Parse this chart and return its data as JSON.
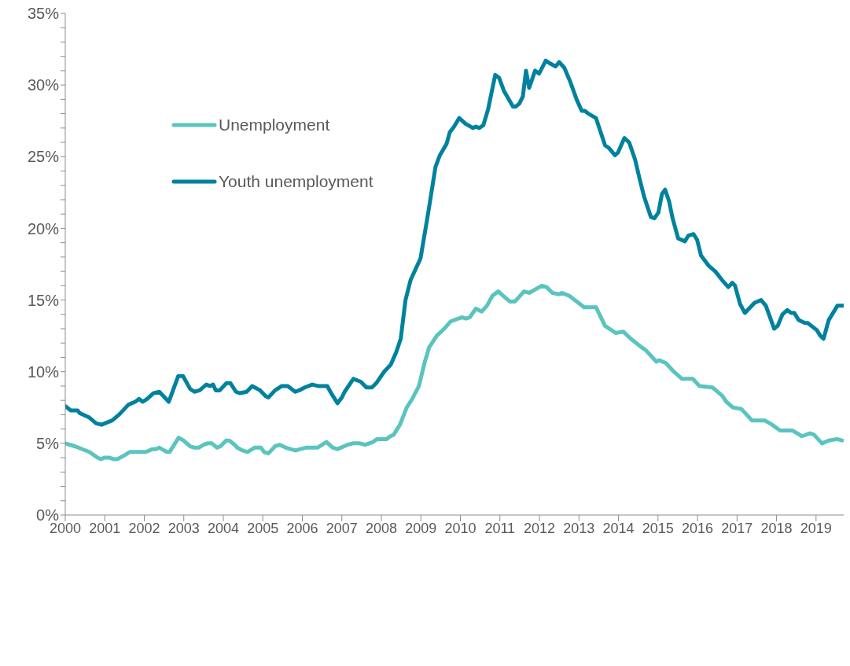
{
  "chart_data": {
    "type": "line",
    "legend": "top left",
    "marker": "none",
    "line_style": "solid",
    "xlim": [
      2000,
      2019.7
    ],
    "xticks": [
      2000,
      2001,
      2002,
      2003,
      2004,
      2005,
      2006,
      2007,
      2008,
      2009,
      2010,
      2011,
      2012,
      2013,
      2014,
      2015,
      2016,
      2017,
      2018,
      2019
    ],
    "ylim": [
      0,
      35
    ],
    "yticks": [
      {
        "value": 0,
        "label": "0%"
      },
      {
        "value": 1,
        "label": null
      },
      {
        "value": 2,
        "label": null
      },
      {
        "value": 3,
        "label": null
      },
      {
        "value": 4,
        "label": null
      },
      {
        "value": 5,
        "label": "5%"
      },
      {
        "value": 6,
        "label": null
      },
      {
        "value": 7,
        "label": null
      },
      {
        "value": 8,
        "label": null
      },
      {
        "value": 9,
        "label": null
      },
      {
        "value": 10,
        "label": "10%"
      },
      {
        "value": 11,
        "label": null
      },
      {
        "value": 12,
        "label": null
      },
      {
        "value": 13,
        "label": null
      },
      {
        "value": 14,
        "label": null
      },
      {
        "value": 15,
        "label": "15%"
      },
      {
        "value": 16,
        "label": null
      },
      {
        "value": 17,
        "label": null
      },
      {
        "value": 18,
        "label": null
      },
      {
        "value": 19,
        "label": null
      },
      {
        "value": 20,
        "label": "20%"
      },
      {
        "value": 21,
        "label": null
      },
      {
        "value": 22,
        "label": null
      },
      {
        "value": 23,
        "label": null
      },
      {
        "value": 24,
        "label": null
      },
      {
        "value": 25,
        "label": "25%"
      },
      {
        "value": 26,
        "label": null
      },
      {
        "value": 27,
        "label": null
      },
      {
        "value": 28,
        "label": null
      },
      {
        "value": 29,
        "label": null
      },
      {
        "value": 30,
        "label": "30%"
      },
      {
        "value": 31,
        "label": null
      },
      {
        "value": 32,
        "label": null
      },
      {
        "value": 33,
        "label": null
      },
      {
        "value": 34,
        "label": null
      },
      {
        "value": 35,
        "label": "35%"
      }
    ],
    "series": [
      {
        "name": "Youth unemployment",
        "color": "#00829e",
        "x": [
          2000.0,
          2000.14,
          2000.31,
          2000.37,
          2000.61,
          2000.78,
          2000.92,
          2001.19,
          2001.36,
          2001.6,
          2001.77,
          2001.87,
          2001.96,
          2002.07,
          2002.23,
          2002.38,
          2002.62,
          2002.86,
          2002.98,
          2003.16,
          2003.27,
          2003.4,
          2003.57,
          2003.66,
          2003.74,
          2003.81,
          2003.91,
          2004.08,
          2004.18,
          2004.32,
          2004.42,
          2004.59,
          2004.73,
          2004.93,
          2005.07,
          2005.14,
          2005.31,
          2005.48,
          2005.63,
          2005.82,
          2005.92,
          2006.06,
          2006.25,
          2006.4,
          2006.63,
          2006.73,
          2006.89,
          2007.0,
          2007.07,
          2007.29,
          2007.48,
          2007.62,
          2007.76,
          2007.87,
          2008.07,
          2008.24,
          2008.38,
          2008.49,
          2008.61,
          2008.74,
          2008.99,
          2009.18,
          2009.37,
          2009.48,
          2009.65,
          2009.73,
          2009.84,
          2009.97,
          2010.13,
          2010.32,
          2010.39,
          2010.48,
          2010.58,
          2010.7,
          2010.88,
          2010.98,
          2011.1,
          2011.33,
          2011.4,
          2011.49,
          2011.58,
          2011.66,
          2011.74,
          2011.89,
          2011.99,
          2012.16,
          2012.27,
          2012.41,
          2012.5,
          2012.63,
          2012.77,
          2012.94,
          2013.07,
          2013.15,
          2013.24,
          2013.43,
          2013.66,
          2013.76,
          2013.91,
          2013.99,
          2014.15,
          2014.27,
          2014.42,
          2014.54,
          2014.65,
          2014.82,
          2014.91,
          2015.01,
          2015.1,
          2015.18,
          2015.28,
          2015.37,
          2015.51,
          2015.68,
          2015.77,
          2015.9,
          2015.99,
          2016.09,
          2016.28,
          2016.45,
          2016.62,
          2016.78,
          2016.88,
          2016.95,
          2017.08,
          2017.2,
          2017.44,
          2017.61,
          2017.73,
          2017.94,
          2018.03,
          2018.15,
          2018.27,
          2018.37,
          2018.45,
          2018.56,
          2018.72,
          2018.79,
          2019.02,
          2019.11,
          2019.19,
          2019.32,
          2019.54,
          2019.7
        ],
        "values": [
          7.6,
          7.3,
          7.3,
          7.1,
          6.8,
          6.4,
          6.3,
          6.6,
          7.0,
          7.7,
          7.9,
          8.1,
          7.9,
          8.1,
          8.5,
          8.6,
          7.9,
          9.7,
          9.7,
          8.8,
          8.6,
          8.7,
          9.1,
          9.0,
          9.1,
          8.7,
          8.7,
          9.2,
          9.2,
          8.6,
          8.5,
          8.6,
          9.0,
          8.7,
          8.3,
          8.2,
          8.7,
          9.0,
          9.0,
          8.6,
          8.7,
          8.9,
          9.1,
          9.0,
          9.0,
          8.5,
          7.8,
          8.2,
          8.6,
          9.5,
          9.3,
          8.9,
          8.9,
          9.2,
          10.0,
          10.5,
          11.4,
          12.3,
          15.0,
          16.4,
          17.9,
          21.0,
          24.3,
          25.1,
          25.9,
          26.7,
          27.1,
          27.7,
          27.3,
          27.0,
          27.1,
          27.0,
          27.2,
          28.3,
          30.7,
          30.5,
          29.6,
          28.5,
          28.5,
          28.7,
          29.2,
          31.0,
          29.8,
          31.0,
          30.8,
          31.7,
          31.5,
          31.3,
          31.6,
          31.2,
          30.3,
          29.0,
          28.2,
          28.2,
          28.0,
          27.7,
          25.8,
          25.6,
          25.1,
          25.3,
          26.3,
          26.0,
          24.8,
          23.4,
          22.2,
          20.8,
          20.7,
          21.1,
          22.4,
          22.7,
          21.9,
          20.7,
          19.3,
          19.1,
          19.5,
          19.6,
          19.2,
          18.1,
          17.4,
          17.0,
          16.4,
          15.9,
          16.2,
          16.0,
          14.7,
          14.1,
          14.8,
          15.0,
          14.6,
          13.0,
          13.2,
          14.0,
          14.3,
          14.1,
          14.1,
          13.6,
          13.4,
          13.4,
          12.9,
          12.5,
          12.3,
          13.6,
          14.6,
          14.6
        ]
      },
      {
        "name": "Unemployment",
        "color": "#5bc4bf",
        "x": [
          2000.0,
          2000.24,
          2000.61,
          2000.82,
          2000.9,
          2000.99,
          2001.12,
          2001.22,
          2001.31,
          2001.46,
          2001.63,
          2002.04,
          2002.21,
          2002.3,
          2002.38,
          2002.57,
          2002.64,
          2002.87,
          2002.99,
          2003.16,
          2003.27,
          2003.38,
          2003.5,
          2003.6,
          2003.71,
          2003.84,
          2003.93,
          2004.07,
          2004.15,
          2004.29,
          2004.35,
          2004.49,
          2004.61,
          2004.79,
          2004.95,
          2005.03,
          2005.14,
          2005.31,
          2005.43,
          2005.58,
          2005.82,
          2005.95,
          2006.09,
          2006.38,
          2006.5,
          2006.61,
          2006.77,
          2006.89,
          2007.14,
          2007.28,
          2007.45,
          2007.59,
          2007.79,
          2007.89,
          2008.13,
          2008.23,
          2008.31,
          2008.47,
          2008.64,
          2008.78,
          2008.95,
          2009.1,
          2009.21,
          2009.4,
          2009.59,
          2009.75,
          2009.94,
          2010.05,
          2010.14,
          2010.24,
          2010.39,
          2010.54,
          2010.67,
          2010.81,
          2010.96,
          2011.08,
          2011.25,
          2011.38,
          2011.61,
          2011.74,
          2012.06,
          2012.18,
          2012.33,
          2012.5,
          2012.57,
          2012.75,
          2013.13,
          2013.43,
          2013.66,
          2013.93,
          2014.12,
          2014.31,
          2014.54,
          2014.69,
          2014.96,
          2015.03,
          2015.2,
          2015.4,
          2015.61,
          2015.88,
          2016.05,
          2016.38,
          2016.51,
          2016.63,
          2016.73,
          2016.9,
          2017.11,
          2017.38,
          2017.7,
          2017.89,
          2018.09,
          2018.4,
          2018.64,
          2018.85,
          2018.95,
          2019.15,
          2019.32,
          2019.53,
          2019.66
        ],
        "values": [
          5.0,
          4.8,
          4.4,
          4.0,
          3.9,
          4.0,
          4.0,
          3.9,
          3.9,
          4.1,
          4.4,
          4.4,
          4.6,
          4.6,
          4.7,
          4.4,
          4.4,
          5.4,
          5.2,
          4.8,
          4.7,
          4.7,
          4.9,
          5.0,
          5.0,
          4.7,
          4.8,
          5.2,
          5.2,
          4.9,
          4.7,
          4.5,
          4.4,
          4.7,
          4.7,
          4.4,
          4.3,
          4.8,
          4.9,
          4.7,
          4.5,
          4.6,
          4.7,
          4.7,
          4.9,
          5.1,
          4.7,
          4.6,
          4.9,
          5.0,
          5.0,
          4.9,
          5.1,
          5.3,
          5.3,
          5.5,
          5.6,
          6.3,
          7.5,
          8.1,
          9.0,
          10.7,
          11.7,
          12.5,
          13.0,
          13.5,
          13.7,
          13.8,
          13.7,
          13.8,
          14.4,
          14.2,
          14.6,
          15.3,
          15.6,
          15.3,
          14.9,
          14.9,
          15.6,
          15.5,
          16.0,
          15.9,
          15.5,
          15.4,
          15.5,
          15.3,
          14.5,
          14.5,
          13.2,
          12.7,
          12.8,
          12.3,
          11.8,
          11.5,
          10.7,
          10.8,
          10.6,
          10.0,
          9.5,
          9.5,
          9.0,
          8.9,
          8.6,
          8.3,
          7.9,
          7.5,
          7.4,
          6.6,
          6.6,
          6.3,
          5.9,
          5.9,
          5.5,
          5.7,
          5.6,
          5.0,
          5.2,
          5.3,
          5.2
        ]
      }
    ]
  }
}
